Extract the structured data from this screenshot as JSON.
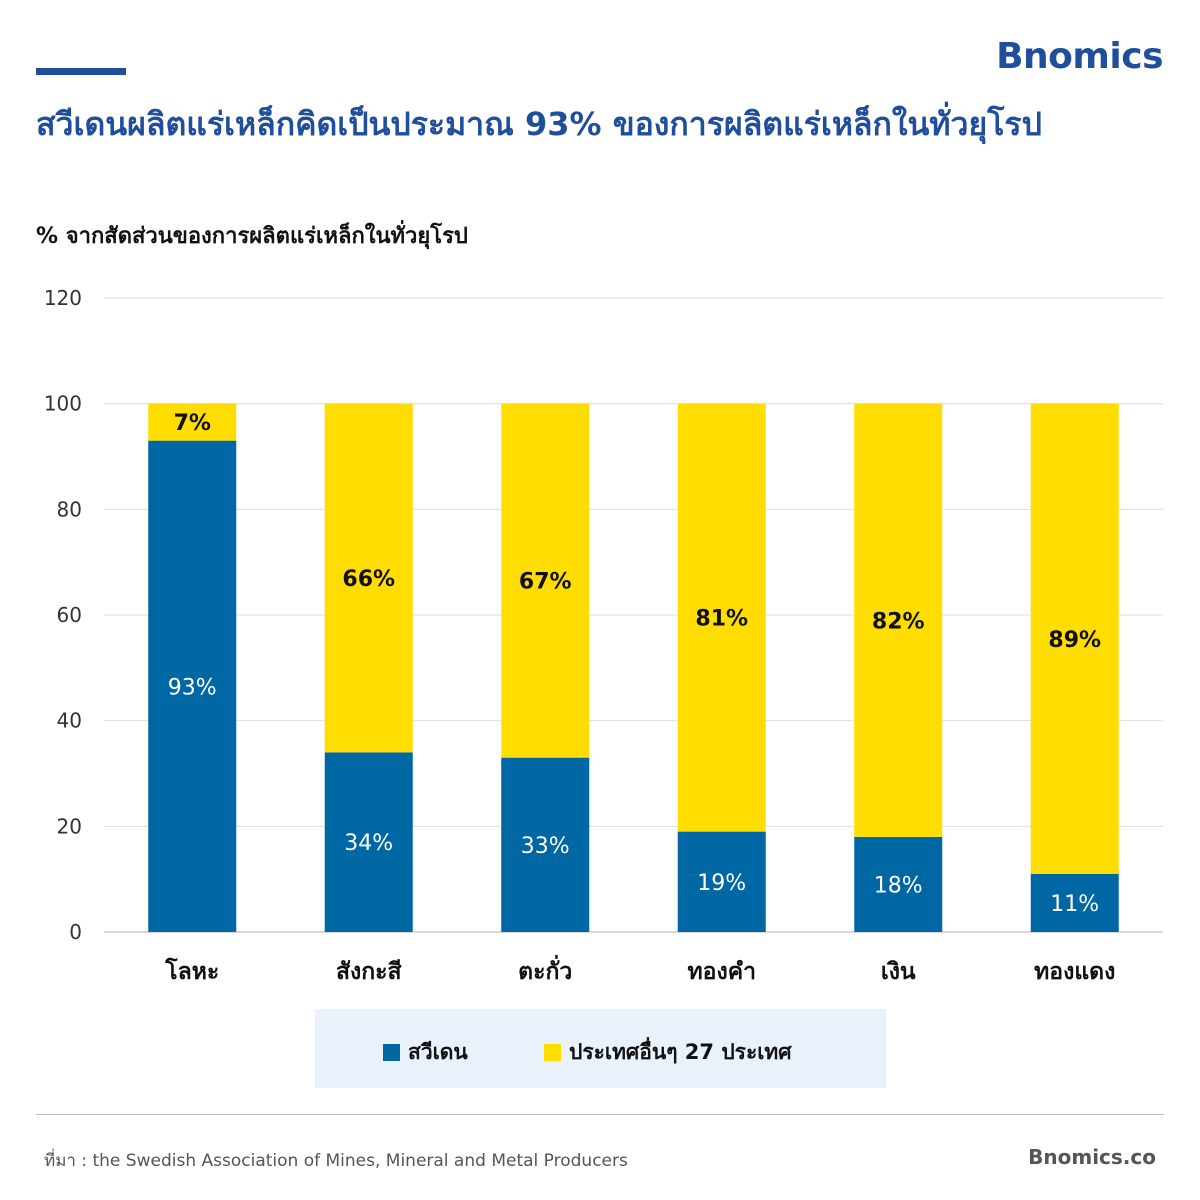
{
  "brand": "Bnomics",
  "title": "สวีเดนผลิตแร่เหล็กคิดเป็นประมาณ 93% ของการผลิตแร่เหล็กในทั่วยุโรป",
  "subtitle": "% จากสัดส่วนของการผลิตแร่เหล็กในทั่วยุโรป",
  "colors": {
    "brand": "#1f4e9c",
    "sweden": "#0067a5",
    "other": "#ffdd00",
    "legend_bg": "#e9f1fb"
  },
  "chart_data": {
    "type": "bar",
    "stacked": true,
    "categories": [
      "โลหะ",
      "สังกะสี",
      "ตะกั่ว",
      "ทองคำ",
      "เงิน",
      "ทองแดง"
    ],
    "series": [
      {
        "name": "สวีเดน",
        "values": [
          93,
          34,
          33,
          19,
          18,
          11
        ],
        "labels": [
          "93%",
          "34%",
          "33%",
          "19%",
          "18%",
          "11%"
        ],
        "color": "#0067a5"
      },
      {
        "name": "ประเทศอื่นๆ 27 ประเทศ",
        "values": [
          7,
          66,
          67,
          81,
          82,
          89
        ],
        "labels": [
          "7%",
          "66%",
          "67%",
          "81%",
          "82%",
          "89%"
        ],
        "color": "#ffdd00"
      }
    ],
    "ylim": [
      0,
      120
    ],
    "yticks": [
      "0",
      "20",
      "40",
      "60",
      "80",
      "100",
      "120"
    ],
    "grid": true,
    "legend_position": "bottom"
  },
  "legend": {
    "sweden": "สวีเดน",
    "other": "ประเทศอื่นๆ 27 ประเทศ"
  },
  "footer": {
    "source": "ที่มา : the Swedish Association of Mines, Mineral and Metal Producers",
    "site": "Bnomics.co"
  }
}
